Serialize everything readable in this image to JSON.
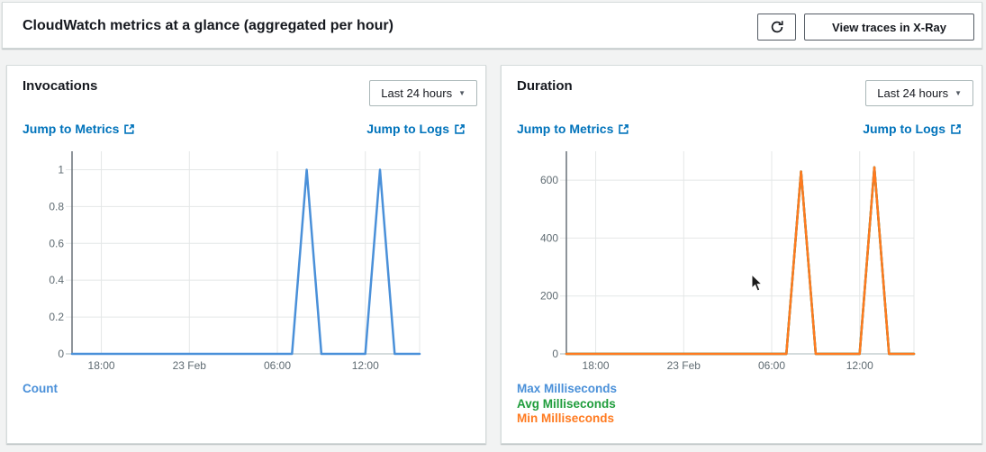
{
  "header": {
    "title": "CloudWatch metrics at a glance (aggregated per hour)",
    "xray_button_label": "View traces in X-Ray",
    "refresh_button": "refresh"
  },
  "icons": {
    "caret_down": "▼"
  },
  "colors": {
    "link": "#0073bb",
    "blue": "#4a90d9",
    "green": "#1f9d3c",
    "orange": "#ff7a1f",
    "axis": "#687078",
    "grid": "#e4e7e7",
    "baseline": "#aab7b8",
    "tick_text": "#5f6b72"
  },
  "panels": [
    {
      "title": "Invocations",
      "range_label": "Last 24 hours",
      "jump_metrics_label": "Jump to Metrics",
      "jump_logs_label": "Jump to Logs",
      "legend": [
        {
          "label": "Count",
          "color_key": "blue"
        }
      ]
    },
    {
      "title": "Duration",
      "range_label": "Last 24 hours",
      "jump_metrics_label": "Jump to Metrics",
      "jump_logs_label": "Jump to Logs",
      "legend": [
        {
          "label": "Max Milliseconds",
          "color_key": "blue"
        },
        {
          "label": "Avg Milliseconds",
          "color_key": "green"
        },
        {
          "label": "Min Milliseconds",
          "color_key": "orange"
        }
      ]
    }
  ],
  "chart_data": [
    {
      "type": "line",
      "title": "Invocations",
      "xlabel": "",
      "ylabel": "Count",
      "grid": true,
      "x_domain_hours": [
        0,
        23.7
      ],
      "x_ticks": [
        {
          "h": 2,
          "label": "18:00"
        },
        {
          "h": 8,
          "label": "23 Feb"
        },
        {
          "h": 14,
          "label": "06:00"
        },
        {
          "h": 20,
          "label": "12:00"
        }
      ],
      "y_ticks": [
        0,
        0.2,
        0.4,
        0.6,
        0.8,
        1
      ],
      "ylim": [
        0,
        1
      ],
      "y_render_max": 1.1,
      "series": [
        {
          "name": "Count",
          "color_key": "blue",
          "points": [
            [
              0,
              0
            ],
            [
              15,
              0
            ],
            [
              16,
              1
            ],
            [
              17,
              0
            ],
            [
              20,
              0
            ],
            [
              21,
              1
            ],
            [
              22,
              0
            ],
            [
              23.7,
              0
            ]
          ]
        }
      ]
    },
    {
      "type": "line",
      "title": "Duration",
      "xlabel": "",
      "ylabel": "Milliseconds",
      "grid": true,
      "x_domain_hours": [
        0,
        23.7
      ],
      "x_ticks": [
        {
          "h": 2,
          "label": "18:00"
        },
        {
          "h": 8,
          "label": "23 Feb"
        },
        {
          "h": 14,
          "label": "06:00"
        },
        {
          "h": 20,
          "label": "12:00"
        }
      ],
      "y_ticks": [
        0,
        200,
        400,
        600
      ],
      "ylim": [
        0,
        700
      ],
      "y_render_max": 700,
      "series": [
        {
          "name": "Max Milliseconds",
          "color_key": "blue",
          "points": [
            [
              0,
              0
            ],
            [
              15,
              0
            ],
            [
              16,
              630
            ],
            [
              17,
              0
            ],
            [
              20,
              0
            ],
            [
              21,
              645
            ],
            [
              22,
              0
            ],
            [
              23.7,
              0
            ]
          ]
        },
        {
          "name": "Avg Milliseconds",
          "color_key": "green",
          "points": [
            [
              0,
              0
            ],
            [
              15,
              0
            ],
            [
              16,
              630
            ],
            [
              17,
              0
            ],
            [
              20,
              0
            ],
            [
              21,
              645
            ],
            [
              22,
              0
            ],
            [
              23.7,
              0
            ]
          ]
        },
        {
          "name": "Min Milliseconds",
          "color_key": "orange",
          "points": [
            [
              0,
              0
            ],
            [
              15,
              0
            ],
            [
              16,
              630
            ],
            [
              17,
              0
            ],
            [
              20,
              0
            ],
            [
              21,
              645
            ],
            [
              22,
              0
            ],
            [
              23.7,
              0
            ]
          ]
        }
      ]
    }
  ]
}
